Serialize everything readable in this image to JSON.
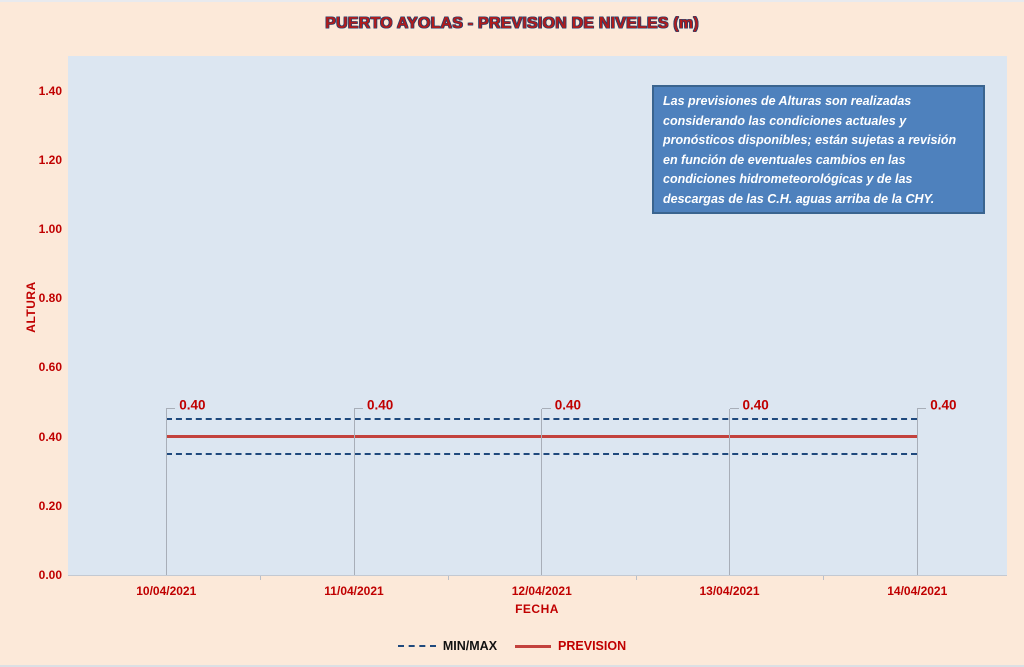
{
  "title": "PUERTO AYOLAS - PREVISION DE NIVELES (m)",
  "note": {
    "text": "Las previsiones de Alturas son realizadas\nconsiderando las condiciones actuales y\npronósticos disponibles;  están sujetas a revisión\nen función de eventuales cambios en las\ncondiciones hidrometeorológicas y de las\ndescargas de las C.H. aguas arriba de la CHY."
  },
  "legend": [
    {
      "label": "MIN/MAX",
      "style": "dashed",
      "color": "#1F497D"
    },
    {
      "label": "PREVISION",
      "style": "solid",
      "color": "#C3423D"
    }
  ],
  "colors": {
    "background": "#FCE9D9",
    "plot_background": "#DCE6F1",
    "axis_text": "#C00000",
    "prevision_line": "#C3423D",
    "minmax_line": "#1F497D",
    "note_background": "#4E81BD",
    "note_border": "#3A648F",
    "leader_line": "#A8AEB8"
  },
  "chart_data": {
    "type": "line",
    "title": "PUERTO AYOLAS - PREVISION DE NIVELES (m)",
    "xlabel": "FECHA",
    "ylabel": "ALTURA",
    "categories": [
      "10/04/2021",
      "11/04/2021",
      "12/04/2021",
      "13/04/2021",
      "14/04/2021"
    ],
    "series": [
      {
        "name": "MAX",
        "values": [
          0.45,
          0.45,
          0.45,
          0.45,
          0.45
        ],
        "style": "dashed",
        "color": "#1F497D"
      },
      {
        "name": "MIN",
        "values": [
          0.35,
          0.35,
          0.35,
          0.35,
          0.35
        ],
        "style": "dashed",
        "color": "#1F497D"
      },
      {
        "name": "PREVISION",
        "values": [
          0.4,
          0.4,
          0.4,
          0.4,
          0.4
        ],
        "style": "solid",
        "color": "#C3423D"
      }
    ],
    "data_labels": [
      "0.40",
      "0.40",
      "0.40",
      "0.40",
      "0.40"
    ],
    "ylim": [
      0,
      1.5
    ],
    "y_ticks": [
      "0.00",
      "0.20",
      "0.40",
      "0.60",
      "0.80",
      "1.00",
      "1.20",
      "1.40"
    ],
    "grid": false,
    "legend_position": "bottom"
  }
}
